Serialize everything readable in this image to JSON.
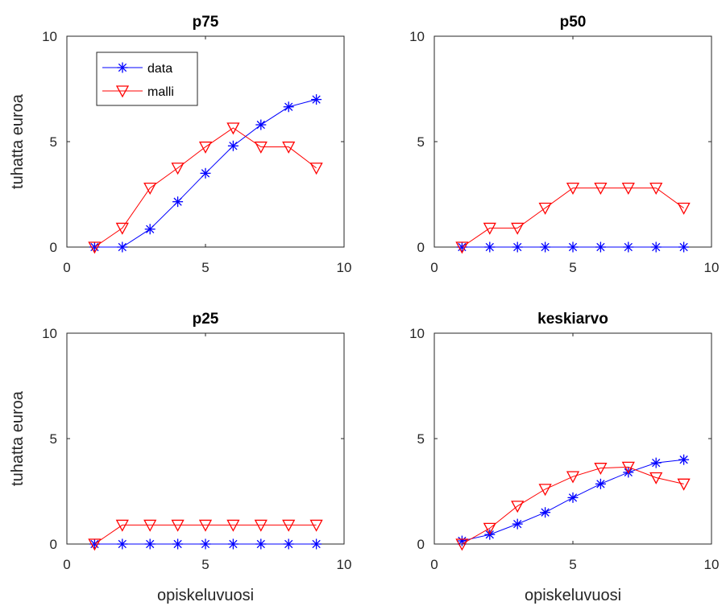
{
  "chart_data": [
    {
      "type": "line",
      "title": "p75",
      "xlabel": "",
      "ylabel": "tuhatta euroa",
      "xlim": [
        0,
        10
      ],
      "ylim": [
        0,
        10
      ],
      "xticks": [
        "0",
        "5",
        "10"
      ],
      "yticks": [
        "0",
        "5",
        "10"
      ],
      "legend": {
        "position": "top-left",
        "entries": [
          "data",
          "malli"
        ]
      },
      "series": [
        {
          "name": "data",
          "color": "#0000ff",
          "marker": "asterisk",
          "x": [
            1,
            2,
            3,
            4,
            5,
            6,
            7,
            8,
            9
          ],
          "y": [
            0,
            0,
            0.85,
            2.15,
            3.5,
            4.8,
            5.8,
            6.65,
            7.0
          ]
        },
        {
          "name": "malli",
          "color": "#ff0000",
          "marker": "triangle-down",
          "x": [
            1,
            2,
            3,
            4,
            5,
            6,
            7,
            8,
            9
          ],
          "y": [
            0,
            0.9,
            2.8,
            3.75,
            4.75,
            5.65,
            4.75,
            4.75,
            3.75
          ]
        }
      ]
    },
    {
      "type": "line",
      "title": "p50",
      "xlabel": "",
      "ylabel": "",
      "xlim": [
        0,
        10
      ],
      "ylim": [
        0,
        10
      ],
      "xticks": [
        "0",
        "5",
        "10"
      ],
      "yticks": [
        "0",
        "5",
        "10"
      ],
      "series": [
        {
          "name": "data",
          "color": "#0000ff",
          "marker": "asterisk",
          "x": [
            1,
            2,
            3,
            4,
            5,
            6,
            7,
            8,
            9
          ],
          "y": [
            0,
            0,
            0,
            0,
            0,
            0,
            0,
            0,
            0
          ]
        },
        {
          "name": "malli",
          "color": "#ff0000",
          "marker": "triangle-down",
          "x": [
            1,
            2,
            3,
            4,
            5,
            6,
            7,
            8,
            9
          ],
          "y": [
            0,
            0.9,
            0.9,
            1.85,
            2.8,
            2.8,
            2.8,
            2.8,
            1.85
          ]
        }
      ]
    },
    {
      "type": "line",
      "title": "p25",
      "xlabel": "opiskeluvuosi",
      "ylabel": "tuhatta euroa",
      "xlim": [
        0,
        10
      ],
      "ylim": [
        0,
        10
      ],
      "xticks": [
        "0",
        "5",
        "10"
      ],
      "yticks": [
        "0",
        "5",
        "10"
      ],
      "series": [
        {
          "name": "data",
          "color": "#0000ff",
          "marker": "asterisk",
          "x": [
            1,
            2,
            3,
            4,
            5,
            6,
            7,
            8,
            9
          ],
          "y": [
            0,
            0,
            0,
            0,
            0,
            0,
            0,
            0,
            0
          ]
        },
        {
          "name": "malli",
          "color": "#ff0000",
          "marker": "triangle-down",
          "x": [
            1,
            2,
            3,
            4,
            5,
            6,
            7,
            8,
            9
          ],
          "y": [
            0,
            0.9,
            0.9,
            0.9,
            0.9,
            0.9,
            0.9,
            0.9,
            0.9
          ]
        }
      ]
    },
    {
      "type": "line",
      "title": "keskiarvo",
      "xlabel": "opiskeluvuosi",
      "ylabel": "",
      "xlim": [
        0,
        10
      ],
      "ylim": [
        0,
        10
      ],
      "xticks": [
        "0",
        "5",
        "10"
      ],
      "yticks": [
        "0",
        "5",
        "10"
      ],
      "series": [
        {
          "name": "data",
          "color": "#0000ff",
          "marker": "asterisk",
          "x": [
            1,
            2,
            3,
            4,
            5,
            6,
            7,
            8,
            9
          ],
          "y": [
            0.15,
            0.45,
            0.95,
            1.5,
            2.2,
            2.85,
            3.4,
            3.85,
            4.0
          ]
        },
        {
          "name": "malli",
          "color": "#ff0000",
          "marker": "triangle-down",
          "x": [
            1,
            2,
            3,
            4,
            5,
            6,
            7,
            8,
            9
          ],
          "y": [
            0,
            0.75,
            1.8,
            2.6,
            3.2,
            3.6,
            3.65,
            3.15,
            2.85
          ]
        }
      ]
    }
  ]
}
